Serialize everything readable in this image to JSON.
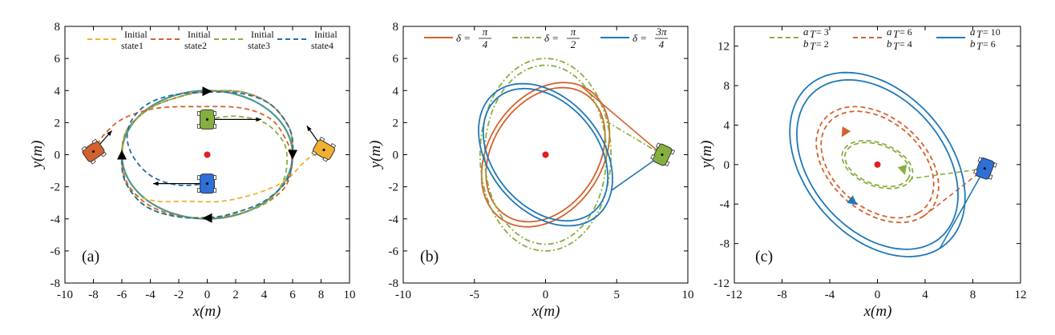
{
  "chart_data": [
    {
      "type": "line",
      "panel_label": "(a)",
      "xlabel": "x(m)",
      "ylabel": "y(m)",
      "xlim": [
        -10,
        10
      ],
      "ylim": [
        -8,
        8
      ],
      "xticks": [
        "-10",
        "-8",
        "-6",
        "-4",
        "-2",
        "0",
        "2",
        "4",
        "6",
        "8",
        "10"
      ],
      "yticks": [
        "-8",
        "-6",
        "-4",
        "-2",
        "0",
        "2",
        "4",
        "6",
        "8"
      ],
      "legend_position": "top",
      "target_point": [
        0,
        0
      ],
      "limit_cycle": {
        "center": [
          0,
          0
        ],
        "rx": 6.0,
        "ry": 4.0,
        "color": "#4a9a8c"
      },
      "series": [
        {
          "name": "Initial state1",
          "color": "#f0b030",
          "style": "dashed",
          "points": [
            [
              8.2,
              0.3
            ],
            [
              7,
              -0.3
            ],
            [
              5.5,
              -1.6
            ],
            [
              3.5,
              -2.4
            ],
            [
              1,
              -2.9
            ],
            [
              -1.5,
              -2.9
            ],
            [
              -3.5,
              -2.9
            ],
            [
              -5,
              -2.5
            ],
            [
              -5.8,
              -1.5
            ],
            [
              -6,
              0
            ],
            [
              -5.6,
              1.6
            ],
            [
              -4,
              2.9
            ],
            [
              -2,
              3.6
            ],
            [
              0,
              3.95
            ],
            [
              2.5,
              3.9
            ],
            [
              4.5,
              3.1
            ],
            [
              5.8,
              1.6
            ],
            [
              6,
              0
            ],
            [
              5.6,
              -1.6
            ],
            [
              4,
              -2.9
            ],
            [
              2,
              -3.6
            ],
            [
              0,
              -3.95
            ],
            [
              -2.5,
              -3.8
            ],
            [
              -4.5,
              -3.1
            ],
            [
              -5.8,
              -1.6
            ],
            [
              -6,
              0
            ]
          ]
        },
        {
          "name": "Initial state2",
          "color": "#d4622d",
          "style": "dashed",
          "points": [
            [
              -8,
              0.2
            ],
            [
              -7.2,
              1.3
            ],
            [
              -5.8,
              2.3
            ],
            [
              -3.5,
              2.9
            ],
            [
              -0.5,
              3
            ],
            [
              2.5,
              2.9
            ],
            [
              4.5,
              2.2
            ],
            [
              5.5,
              1
            ],
            [
              5.9,
              0
            ],
            [
              5.9,
              -1
            ],
            [
              5.3,
              -2.2
            ],
            [
              3.5,
              -3.3
            ],
            [
              1,
              -3.9
            ],
            [
              -1.5,
              -3.9
            ],
            [
              -4,
              -3.2
            ],
            [
              -5.6,
              -1.8
            ],
            [
              -6,
              0
            ],
            [
              -5.6,
              1.6
            ],
            [
              -4,
              2.9
            ],
            [
              -2,
              3.6
            ],
            [
              0,
              3.95
            ],
            [
              2.5,
              3.9
            ],
            [
              4.5,
              3.1
            ],
            [
              5.8,
              1.6
            ],
            [
              6,
              0
            ]
          ]
        },
        {
          "name": "Initial state3",
          "color": "#86b03e",
          "style": "dashed",
          "points": [
            [
              0,
              2.2
            ],
            [
              2,
              2.4
            ],
            [
              4,
              2
            ],
            [
              5.2,
              1
            ],
            [
              5.6,
              0
            ],
            [
              5.4,
              -1.5
            ],
            [
              4.4,
              -2.8
            ],
            [
              2.5,
              -3.6
            ],
            [
              0,
              -3.9
            ],
            [
              -2.5,
              -3.8
            ],
            [
              -4.5,
              -3.1
            ],
            [
              -5.8,
              -1.6
            ],
            [
              -6,
              0
            ],
            [
              -5.6,
              1.6
            ],
            [
              -4,
              2.9
            ],
            [
              -2,
              3.6
            ],
            [
              0,
              3.95
            ],
            [
              2.5,
              3.9
            ],
            [
              4.5,
              3.1
            ],
            [
              5.8,
              1.6
            ],
            [
              6,
              0
            ]
          ]
        },
        {
          "name": "Initial state4",
          "color": "#1f6fb0",
          "style": "dashed",
          "points": [
            [
              0,
              -1.8
            ],
            [
              -2,
              -1.9
            ],
            [
              -3.8,
              -1.4
            ],
            [
              -5,
              -0.4
            ],
            [
              -5.6,
              0.8
            ],
            [
              -5.4,
              2
            ],
            [
              -4.3,
              3.1
            ],
            [
              -2.5,
              3.7
            ],
            [
              0,
              3.9
            ],
            [
              2.5,
              3.8
            ],
            [
              4.5,
              3.1
            ],
            [
              5.8,
              1.6
            ],
            [
              6,
              0
            ],
            [
              5.6,
              -1.6
            ],
            [
              4,
              -2.9
            ],
            [
              2,
              -3.6
            ],
            [
              0,
              -3.95
            ],
            [
              -2.5,
              -3.8
            ],
            [
              -4.5,
              -3.1
            ],
            [
              -5.8,
              -1.6
            ],
            [
              -6,
              0
            ]
          ]
        }
      ],
      "direction_arrows": [
        [
          0,
          3.95,
          1,
          0
        ],
        [
          0,
          -3.95,
          -1,
          0
        ],
        [
          -6,
          0,
          0,
          1
        ],
        [
          6,
          0,
          0,
          -1
        ]
      ],
      "vehicles": [
        {
          "x": 8.2,
          "y": 0.3,
          "angle_deg": -150,
          "color": "#f0b030",
          "arrow_to": [
            7,
            1.8
          ]
        },
        {
          "x": -8,
          "y": 0.2,
          "angle_deg": -35,
          "color": "#d4622d",
          "arrow_to": [
            -6.7,
            1.5
          ]
        },
        {
          "x": 0,
          "y": 2.2,
          "angle_deg": 90,
          "color": "#86b03e",
          "arrow_to": [
            3.8,
            2.2
          ]
        },
        {
          "x": 0,
          "y": -1.8,
          "angle_deg": 90,
          "color": "#2f6fd8",
          "arrow_to": [
            -3.8,
            -1.8
          ]
        }
      ]
    },
    {
      "type": "line",
      "panel_label": "(b)",
      "xlabel": "x(m)",
      "ylabel": "y(m)",
      "xlim": [
        -10,
        10
      ],
      "ylim": [
        -8,
        8
      ],
      "xticks": [
        "-10",
        "-5",
        "0",
        "5",
        "10"
      ],
      "yticks": [
        "-8",
        "-6",
        "-4",
        "-2",
        "0",
        "2",
        "4",
        "6",
        "8"
      ],
      "legend_position": "top",
      "target_point": [
        0,
        0
      ],
      "series": [
        {
          "name": "δ = π/4",
          "color": "#d4622d",
          "style": "solid",
          "orbit": {
            "rx": 5.1,
            "ry": 3.8,
            "rot_deg": 45
          }
        },
        {
          "name": "δ = π/2",
          "color": "#86b03e",
          "style": "dashdot",
          "orbit": {
            "rx": 4.6,
            "ry": 6.0,
            "rot_deg": 0
          }
        },
        {
          "name": "δ = 3π/4",
          "color": "#1f78b8",
          "style": "solid",
          "orbit": {
            "rx": 5.3,
            "ry": 3.7,
            "rot_deg": -40
          }
        }
      ],
      "legend": [
        {
          "prefix": "δ =",
          "num": "π",
          "den": "4",
          "color": "#d4622d",
          "style": "solid"
        },
        {
          "prefix": "δ =",
          "num": "π",
          "den": "2",
          "color": "#86b03e",
          "style": "dashdot"
        },
        {
          "prefix": "δ =",
          "num": "3π",
          "den": "4",
          "color": "#1f78b8",
          "style": "solid"
        }
      ],
      "vehicles": [
        {
          "x": 8.2,
          "y": 0,
          "angle_deg": -65,
          "color": "#86b03e"
        }
      ]
    },
    {
      "type": "line",
      "panel_label": "(c)",
      "xlabel": "x(m)",
      "ylabel": "y(m)",
      "xlim": [
        -12,
        12
      ],
      "ylim": [
        -12,
        14
      ],
      "xticks": [
        "-12",
        "-8",
        "-4",
        "0",
        "4",
        "8",
        "12"
      ],
      "yticks": [
        "-12",
        "-8",
        "-4",
        "0",
        "4",
        "8",
        "12"
      ],
      "legend_position": "top",
      "target_point": [
        0,
        0
      ],
      "series": [
        {
          "name": "a_T = 3, b_T = 2",
          "color": "#86b03e",
          "style": "dashed",
          "orbit": {
            "rx": 3.2,
            "ry": 2.1,
            "rot_deg": -30
          }
        },
        {
          "name": "a_T = 6, b_T = 4",
          "color": "#d4622d",
          "style": "dashed",
          "orbit": {
            "rx": 6.5,
            "ry": 4.3,
            "rot_deg": -55
          }
        },
        {
          "name": "a_T = 10, b_T = 6",
          "color": "#1f78b8",
          "style": "solid",
          "orbit": {
            "rx": 10.0,
            "ry": 6.4,
            "rot_deg": -62
          }
        }
      ],
      "legend": [
        {
          "a": "a",
          "sub": "T",
          "aval": "= 3",
          "bval": "= 2",
          "color": "#86b03e",
          "style": "dashed"
        },
        {
          "a": "a",
          "sub": "T",
          "aval": "= 6",
          "bval": "= 4",
          "color": "#d4622d",
          "style": "dashed"
        },
        {
          "a": "a",
          "sub": "T",
          "aval": "= 10",
          "bval": "= 6",
          "color": "#1f78b8",
          "style": "solid"
        }
      ],
      "vehicles": [
        {
          "x": 9,
          "y": -0.4,
          "angle_deg": -70,
          "color": "#2f6fd8"
        }
      ]
    }
  ],
  "legend_a": {
    "items": [
      {
        "line1": "Initial",
        "line2": "state1",
        "color": "#f0b030"
      },
      {
        "line1": "Initial",
        "line2": "state2",
        "color": "#d4622d"
      },
      {
        "line1": "Initial",
        "line2": "state3",
        "color": "#86b03e"
      },
      {
        "line1": "Initial",
        "line2": "state4",
        "color": "#1f6fb0"
      }
    ]
  },
  "legend_c": {
    "b_label": "b"
  }
}
